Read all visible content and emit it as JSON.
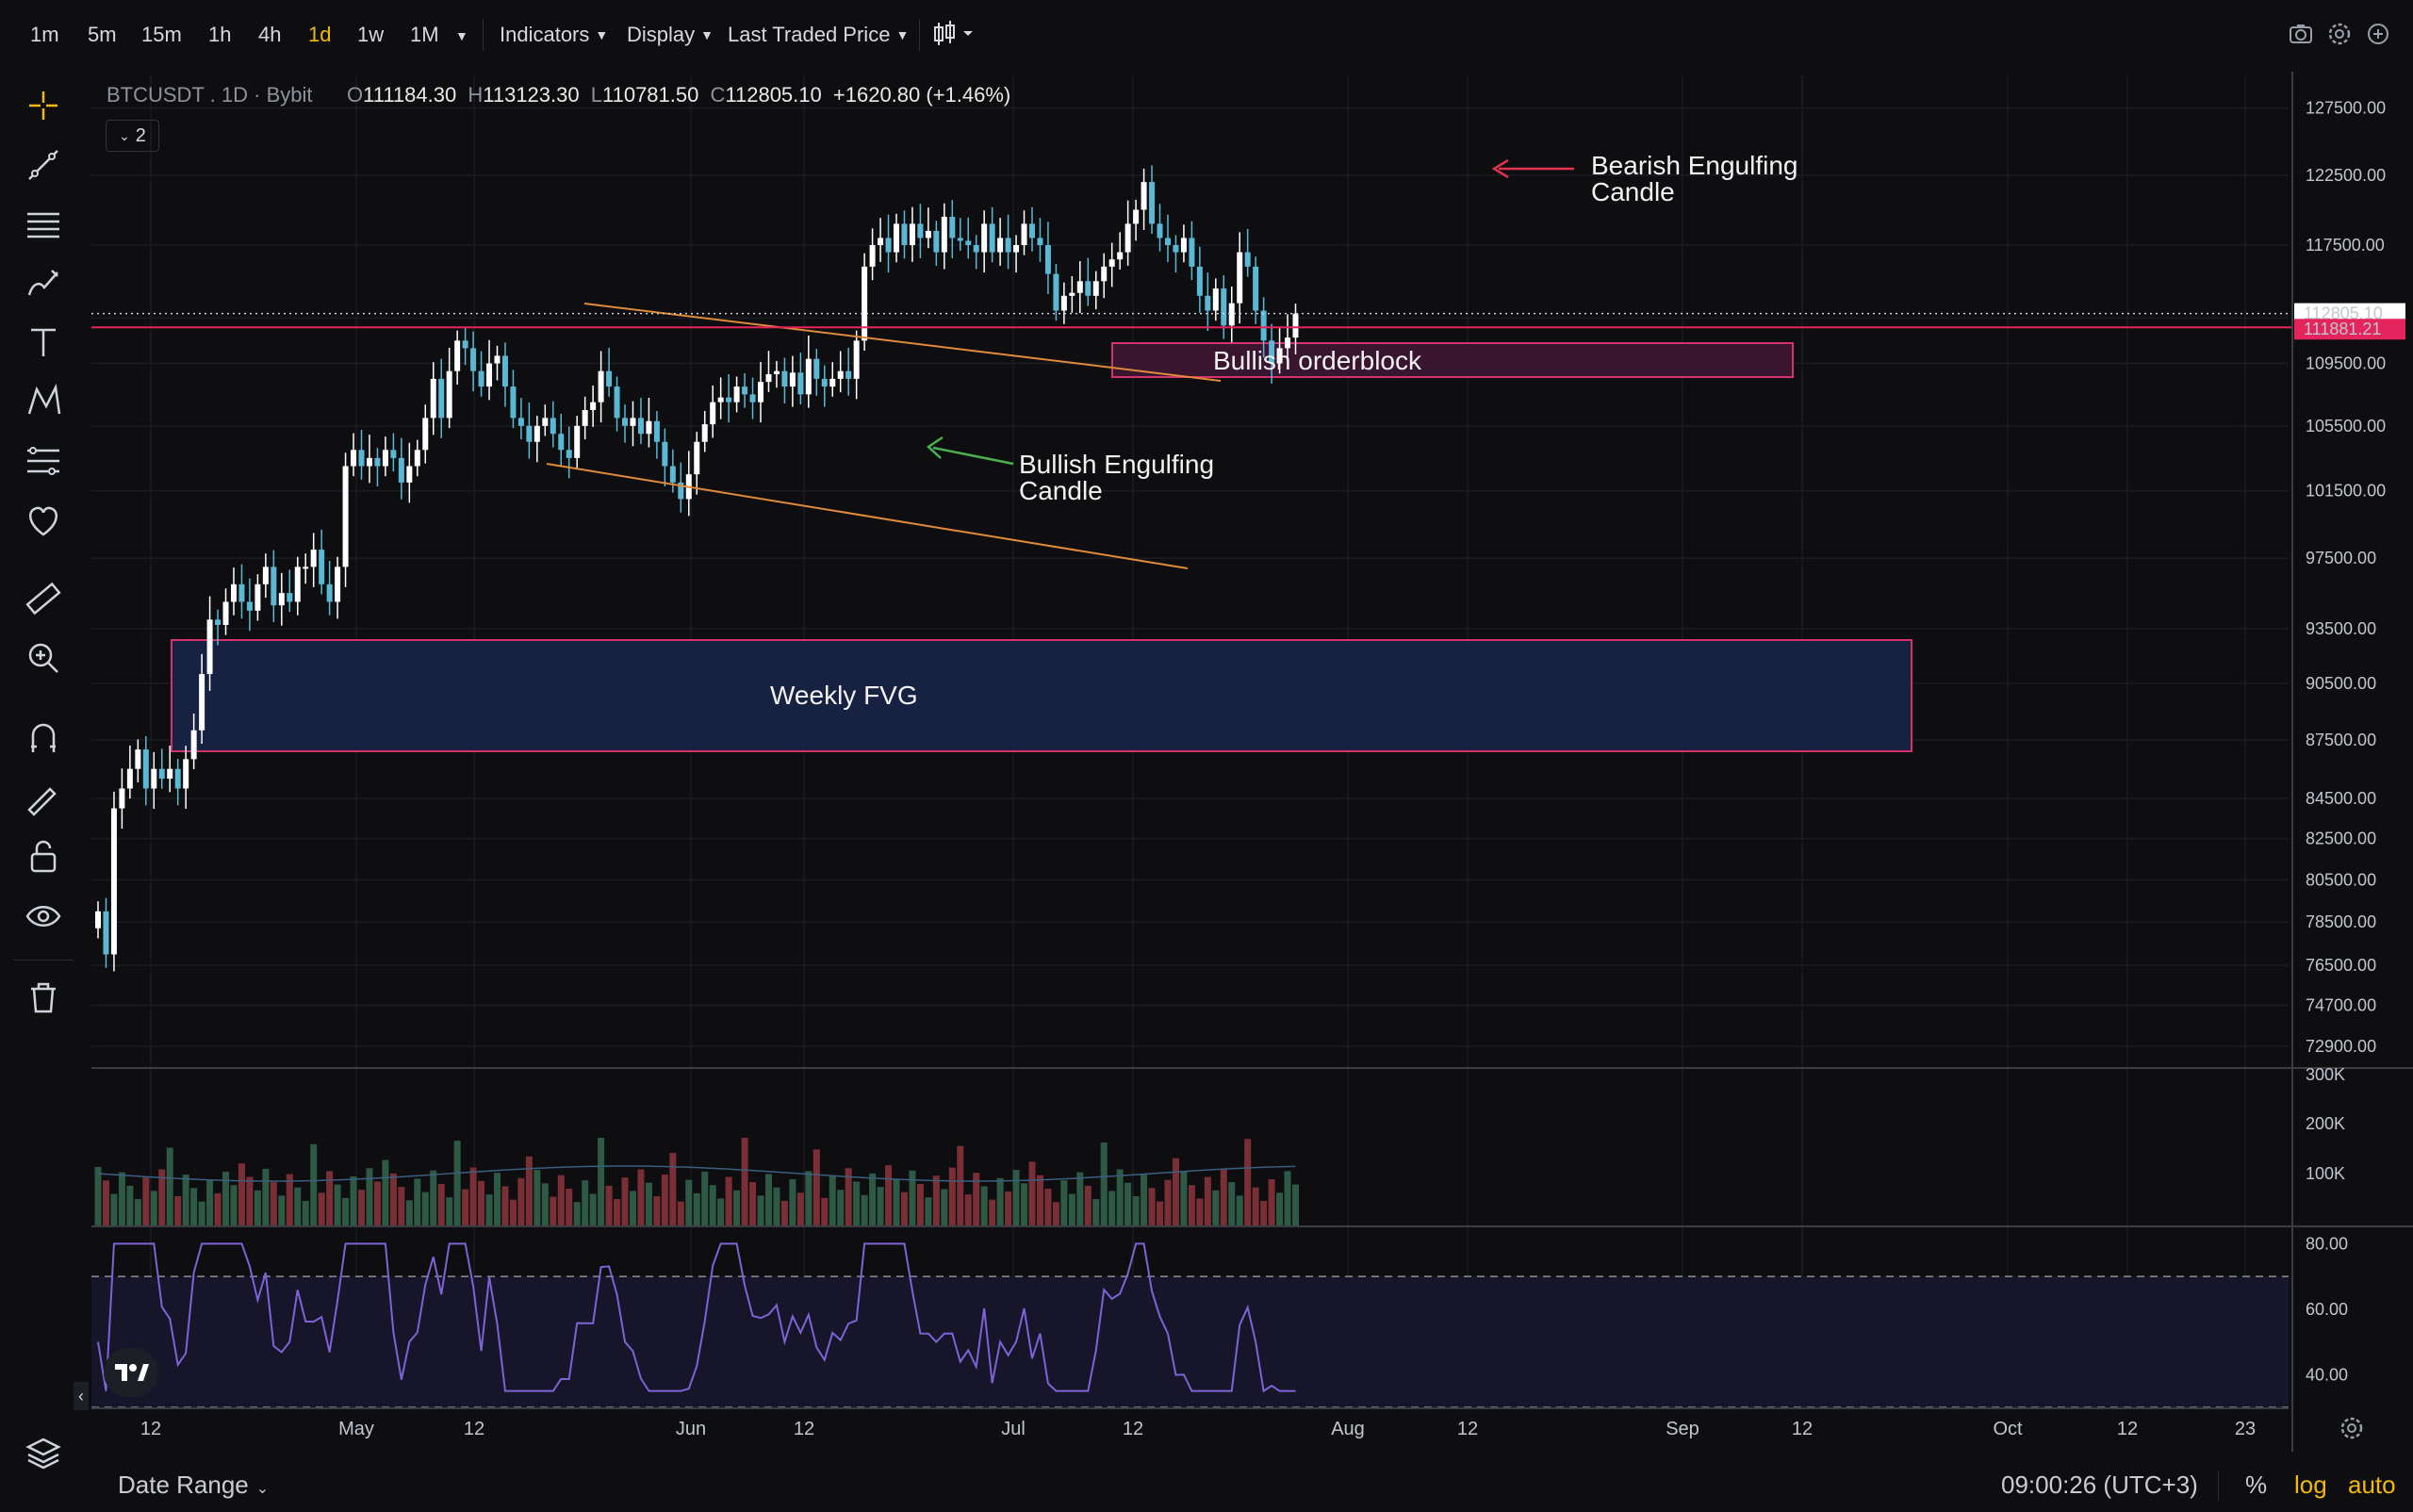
{
  "toolbar": {
    "timeframes": [
      "1m",
      "5m",
      "15m",
      "1h",
      "4h",
      "1d",
      "1w",
      "1M"
    ],
    "active_timeframe": "1d",
    "indicators_label": "Indicators",
    "display_label": "Display",
    "price_type_label": "Last Traded Price"
  },
  "legend": {
    "symbol": "BTCUSDT",
    "interval": "1D",
    "exchange": "Bybit",
    "open_key": "O",
    "open": "111184.30",
    "high_key": "H",
    "high": "113123.30",
    "low_key": "L",
    "low": "110781.50",
    "close_key": "C",
    "close": "112805.10",
    "change": "+1620.80 (+1.46%)",
    "collapse_count": "2"
  },
  "price_axis": {
    "labels": [
      "127500.00",
      "122500.00",
      "117500.00",
      "112500.00",
      "109500.00",
      "105500.00",
      "101500.00",
      "97500.00",
      "93500.00",
      "90500.00",
      "87500.00",
      "84500.00",
      "82500.00",
      "80500.00",
      "78500.00",
      "76500.00",
      "74700.00",
      "72900.00"
    ],
    "current_price": "112805.10",
    "line_price": "111881.21"
  },
  "volume_axis": {
    "labels": [
      "300K",
      "200K",
      "100K"
    ]
  },
  "rsi_axis": {
    "labels": [
      "80.00",
      "60.00",
      "40.00"
    ]
  },
  "time_axis": {
    "labels": [
      "12",
      "May",
      "12",
      "Jun",
      "12",
      "Jul",
      "12",
      "Aug",
      "12",
      "Sep",
      "12",
      "Oct",
      "12",
      "23"
    ]
  },
  "annotations": {
    "bearish_1": "Bearish Engulfing",
    "bearish_2": "Candle",
    "bullish_1": "Bullish Engulfing",
    "bullish_2": "Candle",
    "orderblock": "Bullish orderblock",
    "fvg": "Weekly FVG"
  },
  "bottom": {
    "date_range": "Date Range",
    "clock": "09:00:26 (UTC+3)",
    "percent": "%",
    "log": "log",
    "auto": "auto"
  },
  "colors": {
    "bull": "#ffffff",
    "bear": "#5ab8d4",
    "accent": "#f0b90b",
    "rsi": "#7e63d6",
    "price_line": "#e3245d"
  },
  "chart_data": {
    "type": "candlestick",
    "series": [
      {
        "name": "Price",
        "close": [
          79000,
          77000,
          84000,
          85000,
          86000,
          87000,
          85000,
          86000,
          85500,
          86000,
          85000,
          86500,
          88000,
          91000,
          94000,
          93700,
          95000,
          96000,
          95000,
          94500,
          96000,
          97000,
          94800,
          95500,
          95000,
          97000,
          97000,
          98000,
          96000,
          95000,
          97000,
          103000,
          104000,
          103000,
          103500,
          103000,
          104000,
          103500,
          102000,
          103000,
          104000,
          106000,
          108500,
          106000,
          109000,
          111000,
          110500,
          109000,
          108000,
          109500,
          110000,
          108000,
          106000,
          105500,
          104500,
          105500,
          106000,
          105000,
          104000,
          103500,
          105500,
          106500,
          107000,
          109000,
          108000,
          106000,
          105500,
          106000,
          105000,
          105800,
          104500,
          103000,
          102000,
          101000,
          102500,
          104500,
          105600,
          107000,
          107300,
          107000,
          108000,
          107500,
          107000,
          108300,
          108800,
          109000,
          108000,
          108900,
          107500,
          109800,
          108500,
          108000,
          108500,
          109000,
          108500,
          111000,
          116000,
          117500,
          118000,
          117000,
          119000,
          117500,
          119000,
          118000,
          118500,
          117000,
          119500,
          118000,
          117800,
          117500,
          117000,
          119000,
          117000,
          118000,
          117000,
          117500,
          119000,
          118000,
          117500,
          115500,
          113000,
          114000,
          114200,
          115000,
          114000,
          115000,
          116000,
          116500,
          117000,
          119000,
          120000,
          122000,
          119000,
          118000,
          117500,
          117000,
          118000,
          116000,
          114000,
          113000,
          114500,
          112000,
          113500,
          117000,
          116000,
          113000,
          111000,
          109500,
          110500,
          111200,
          112800
        ]
      }
    ],
    "xlabel": "",
    "ylabel": "",
    "indicators": [
      "Volume",
      "RSI"
    ]
  }
}
